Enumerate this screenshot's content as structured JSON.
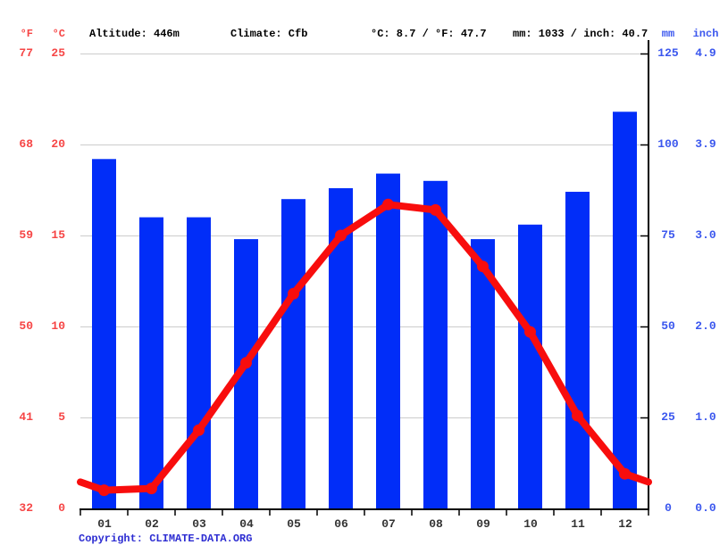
{
  "header": {
    "fahrenheit_label": "°F",
    "celsius_label": "°C",
    "altitude": "Altitude: 446m",
    "climate": "Climate: Cfb",
    "temperature_summary": "°C: 8.7 / °F: 47.7",
    "precipitation_summary": "mm: 1033 / inch: 40.7",
    "mm_label": "mm",
    "inch_label": "inch"
  },
  "axes": {
    "left_fahrenheit": [
      "77",
      "68",
      "59",
      "50",
      "41",
      "32"
    ],
    "left_celsius": [
      "25",
      "20",
      "15",
      "10",
      "5",
      "0"
    ],
    "right_mm": [
      "125",
      "100",
      "75",
      "50",
      "25",
      "0"
    ],
    "right_inch": [
      "4.9",
      "3.9",
      "3.0",
      "2.0",
      "1.0",
      "0.0"
    ]
  },
  "footer": {
    "copyright_prefix": "Copyright:",
    "site": "CLIMATE-DATA.ORG"
  },
  "colors": {
    "bar_blue": "#012DF8",
    "line_red": "#F80D0D",
    "axis_red": "#F64545",
    "axis_blue": "#3B57EE",
    "gridline": "#CCCCCC",
    "axis_black": "#000000",
    "month_label": "#333333",
    "copyright_blue": "#2D2DD2"
  },
  "chart_data": {
    "type": "bar",
    "subtype": "combo-bar-line-climate",
    "categories": [
      "01",
      "02",
      "03",
      "04",
      "05",
      "06",
      "07",
      "08",
      "09",
      "10",
      "11",
      "12"
    ],
    "series": [
      {
        "name": "precipitation",
        "type": "bar",
        "unit": "mm",
        "values": [
          96,
          80,
          80,
          74,
          85,
          88,
          92,
          90,
          74,
          78,
          87,
          109
        ],
        "color": "#012DF8"
      },
      {
        "name": "temperature",
        "type": "line",
        "unit": "°C",
        "values": [
          1.0,
          1.1,
          4.3,
          8.0,
          11.8,
          15.0,
          16.7,
          16.4,
          13.3,
          9.7,
          5.1,
          1.9
        ],
        "color": "#F80D0D"
      }
    ],
    "title": "",
    "xlabel": "",
    "ylabel_left": "°C / °F",
    "ylabel_right": "mm / inch",
    "y_left_celsius": {
      "min": 0,
      "max": 25,
      "ticks": [
        25,
        20,
        15,
        10,
        5,
        0
      ]
    },
    "y_left_fahrenheit_ticks": [
      77,
      68,
      59,
      50,
      41,
      32
    ],
    "y_right_mm": {
      "min": 0,
      "max": 125,
      "ticks": [
        125,
        100,
        75,
        50,
        25,
        0
      ]
    },
    "y_right_inch_ticks": [
      4.9,
      3.9,
      3.0,
      2.0,
      1.0,
      0.0
    ],
    "grid": true,
    "legend": "none",
    "annotations": {
      "altitude_m": 446,
      "climate_class": "Cfb",
      "mean_temp_c": 8.7,
      "mean_temp_f": 47.7,
      "total_precip_mm": 1033,
      "total_precip_inch": 40.7
    }
  }
}
